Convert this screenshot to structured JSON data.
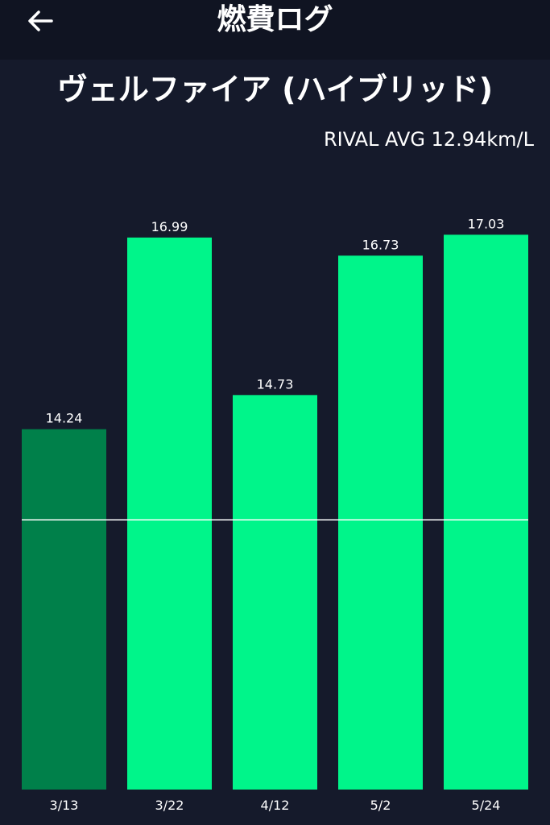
{
  "header": {
    "title": "燃費ログ",
    "back_icon": "arrow-left-icon"
  },
  "vehicle": {
    "title": "ヴェルファイア (ハイブリッド)"
  },
  "rival": {
    "label": "RIVAL AVG 12.94km/L"
  },
  "colors": {
    "background": "#151a2b",
    "app_bar": "#101422",
    "bar_above": "#00f58a",
    "bar_below": "#00804a",
    "rival_line": "#ffffff"
  },
  "chart_data": {
    "type": "bar",
    "categories": [
      "3/13",
      "3/22",
      "4/12",
      "5/2",
      "5/24"
    ],
    "values": [
      14.24,
      16.99,
      14.73,
      16.73,
      17.03
    ],
    "value_labels": [
      "14.24",
      "16.99",
      "14.73",
      "16.73",
      "17.03"
    ],
    "reference_line": {
      "value": 12.94,
      "label": "RIVAL AVG 12.94km/L"
    },
    "ylim": [
      9.07,
      17.3
    ],
    "grid": false
  }
}
